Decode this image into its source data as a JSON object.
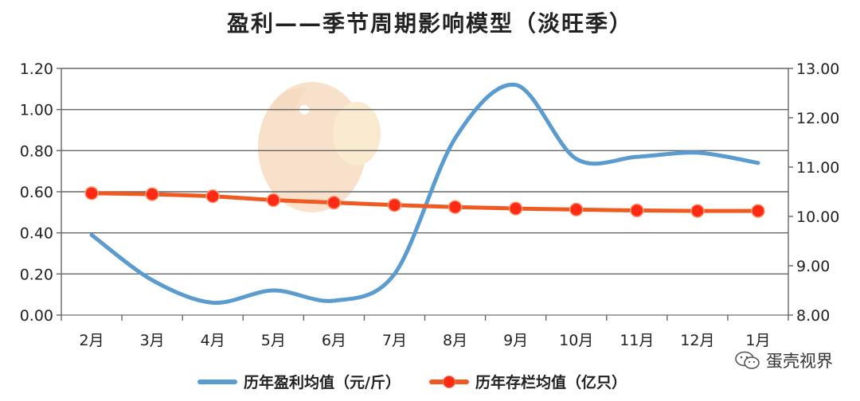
{
  "chart_data": {
    "type": "line",
    "title": "盈利——季节周期影响模型（淡旺季）",
    "categories": [
      "2月",
      "3月",
      "4月",
      "5月",
      "6月",
      "7月",
      "8月",
      "9月",
      "10月",
      "11月",
      "12月",
      "1月"
    ],
    "series": [
      {
        "name": "历年盈利均值（元/斤）",
        "axis": "left",
        "color": "#5a9bd0",
        "smooth": true,
        "markers": false,
        "values": [
          0.39,
          0.17,
          0.06,
          0.12,
          0.07,
          0.2,
          0.86,
          1.12,
          0.76,
          0.77,
          0.79,
          0.74
        ]
      },
      {
        "name": "历年存栏均值（亿只）",
        "axis": "right",
        "color": "#f05a22",
        "marker_color": "#ff2a14",
        "smooth": false,
        "markers": true,
        "values": [
          10.47,
          10.45,
          10.41,
          10.33,
          10.28,
          10.23,
          10.19,
          10.16,
          10.14,
          10.12,
          10.11,
          10.11
        ]
      }
    ],
    "y_left": {
      "ylim": [
        0,
        1.2
      ],
      "ticks": [
        "0.00",
        "0.20",
        "0.40",
        "0.60",
        "0.80",
        "1.00",
        "1.20"
      ]
    },
    "y_right": {
      "ylim": [
        8,
        13
      ],
      "ticks": [
        "8.00",
        "9.00",
        "10.00",
        "11.00",
        "12.00",
        "13.00"
      ]
    },
    "grid": true,
    "legend": "bottom"
  },
  "brand": {
    "text": "蛋壳视界",
    "icon": "wechat-icon"
  }
}
